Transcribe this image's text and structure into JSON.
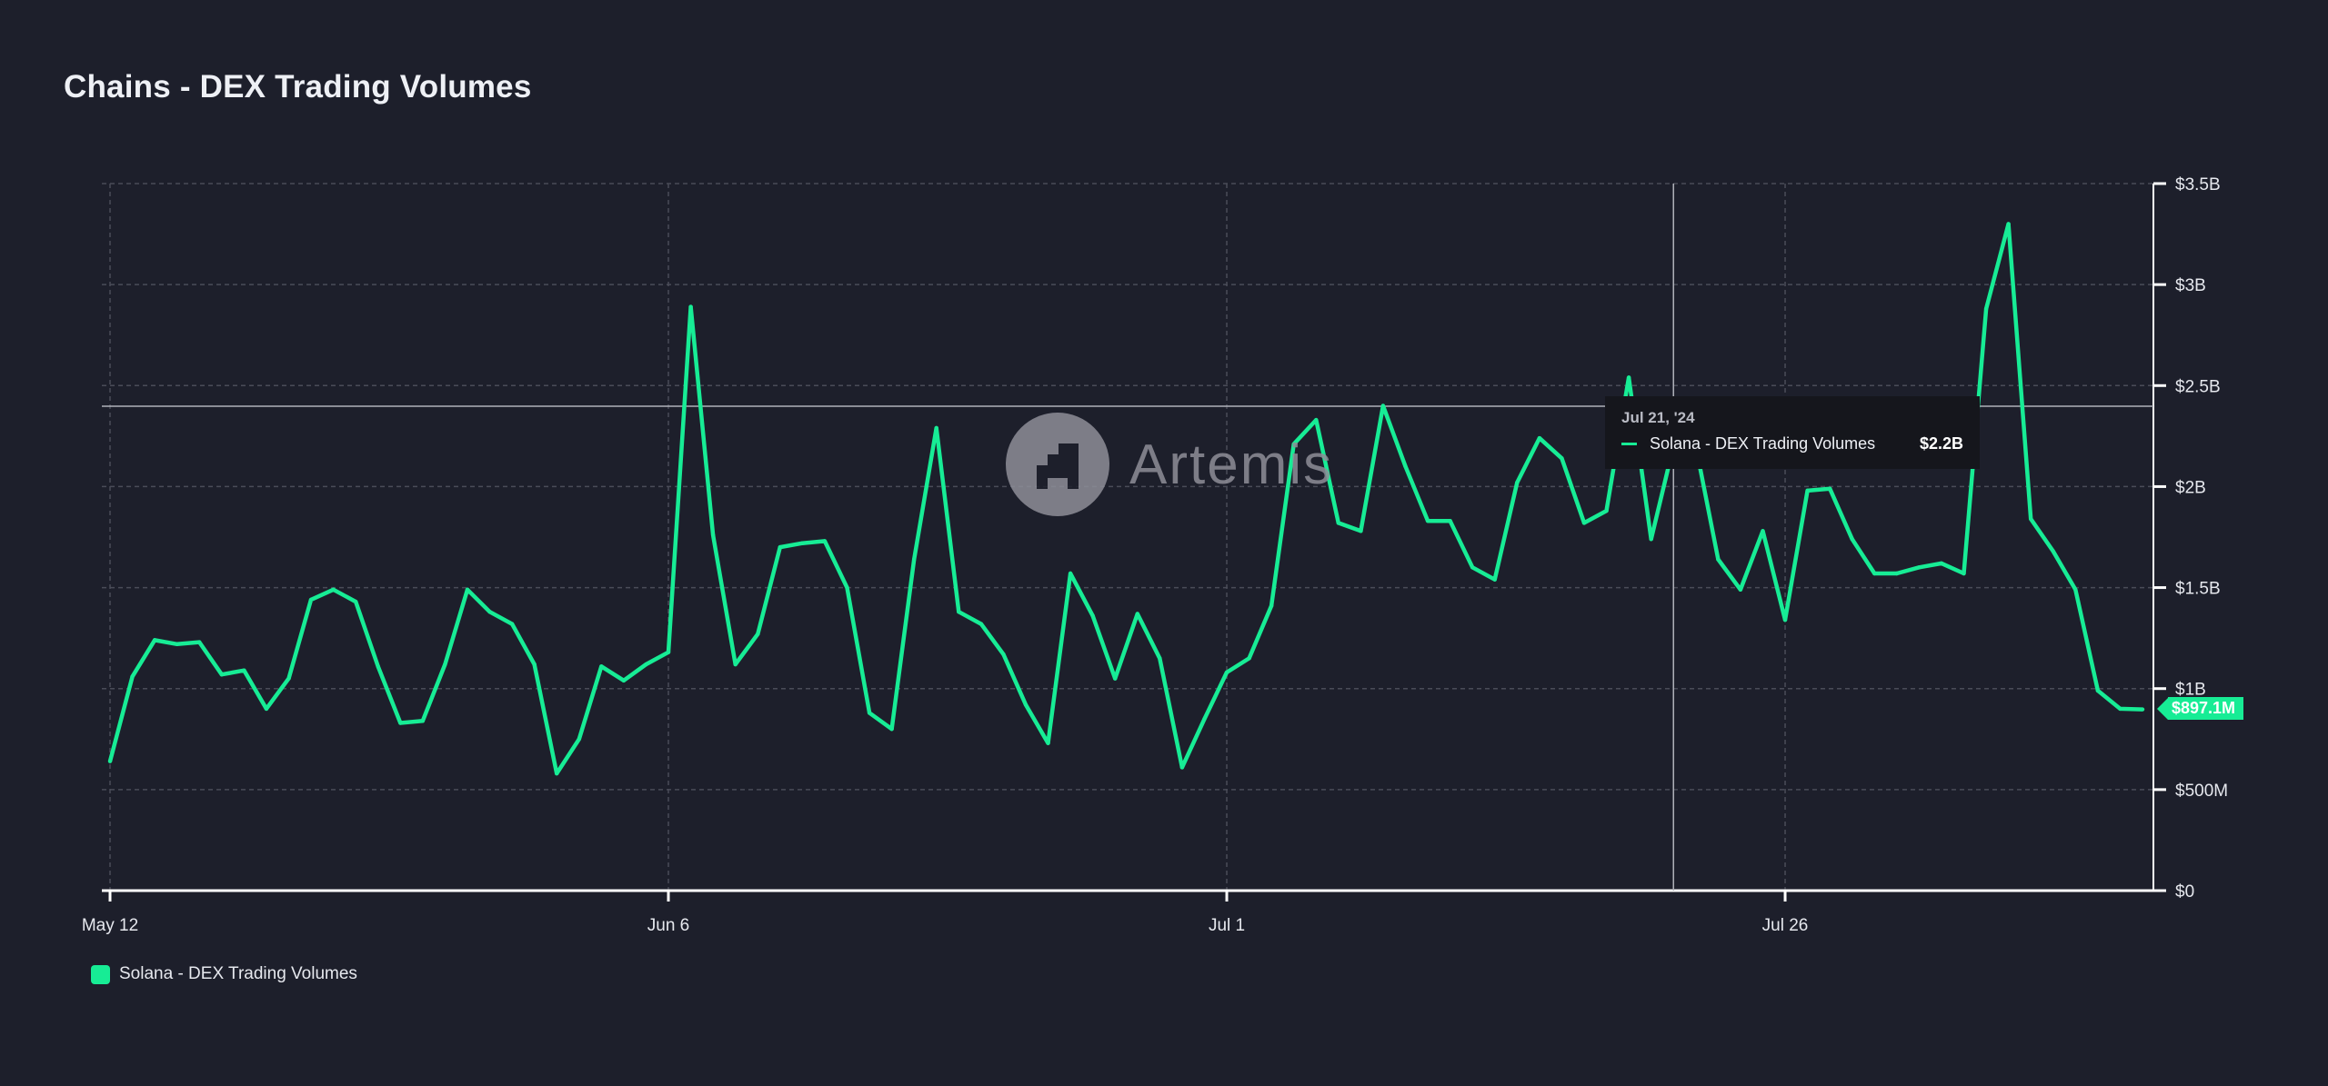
{
  "header": {
    "title": "Chains - DEX Trading Volumes"
  },
  "colors": {
    "background": "#1d1f2b",
    "series": "#17ec95",
    "grid": "#4a4c58",
    "axis": "#ffffff",
    "crosshair": "#b0b2ba"
  },
  "watermark": {
    "text": "Artemis"
  },
  "tooltip": {
    "date": "Jul 21, '24",
    "series": "Solana - DEX Trading Volumes",
    "value": "$2.2B"
  },
  "last_value_label": "$897.1M",
  "legend": {
    "items": [
      {
        "label": "Solana - DEX Trading Volumes",
        "color": "#17ec95"
      }
    ],
    "placement": "bottom-left"
  },
  "chart_data": {
    "type": "line",
    "title": "Chains - DEX Trading Volumes",
    "xlabel": "",
    "ylabel": "",
    "grid": true,
    "y_axis_side": "right",
    "x_tick_labels": [
      "May 12",
      "Jun 6",
      "Jul 1",
      "Jul 26"
    ],
    "y_tick_labels": [
      "$0",
      "$500M",
      "$1B",
      "$1.5B",
      "$2B",
      "$2.5B",
      "$3B",
      "$3.5B"
    ],
    "ylim": [
      0,
      3500000000
    ],
    "xlim": [
      "2024-05-12",
      "2024-08-11"
    ],
    "x": [
      "2024-05-12",
      "2024-05-13",
      "2024-05-14",
      "2024-05-15",
      "2024-05-16",
      "2024-05-17",
      "2024-05-18",
      "2024-05-19",
      "2024-05-20",
      "2024-05-21",
      "2024-05-22",
      "2024-05-23",
      "2024-05-24",
      "2024-05-25",
      "2024-05-26",
      "2024-05-27",
      "2024-05-28",
      "2024-05-29",
      "2024-05-30",
      "2024-05-31",
      "2024-06-01",
      "2024-06-02",
      "2024-06-03",
      "2024-06-04",
      "2024-06-05",
      "2024-06-06",
      "2024-06-07",
      "2024-06-08",
      "2024-06-09",
      "2024-06-10",
      "2024-06-11",
      "2024-06-12",
      "2024-06-13",
      "2024-06-14",
      "2024-06-15",
      "2024-06-16",
      "2024-06-17",
      "2024-06-18",
      "2024-06-19",
      "2024-06-20",
      "2024-06-21",
      "2024-06-22",
      "2024-06-23",
      "2024-06-24",
      "2024-06-25",
      "2024-06-26",
      "2024-06-27",
      "2024-06-28",
      "2024-06-29",
      "2024-06-30",
      "2024-07-01",
      "2024-07-02",
      "2024-07-03",
      "2024-07-04",
      "2024-07-05",
      "2024-07-06",
      "2024-07-07",
      "2024-07-08",
      "2024-07-09",
      "2024-07-10",
      "2024-07-11",
      "2024-07-12",
      "2024-07-13",
      "2024-07-14",
      "2024-07-15",
      "2024-07-16",
      "2024-07-17",
      "2024-07-18",
      "2024-07-19",
      "2024-07-20",
      "2024-07-21",
      "2024-07-22",
      "2024-07-23",
      "2024-07-24",
      "2024-07-25",
      "2024-07-26",
      "2024-07-27",
      "2024-07-28",
      "2024-07-29",
      "2024-07-30",
      "2024-07-31",
      "2024-08-01",
      "2024-08-02",
      "2024-08-03",
      "2024-08-04",
      "2024-08-05",
      "2024-08-06",
      "2024-08-07",
      "2024-08-08",
      "2024-08-09",
      "2024-08-10",
      "2024-08-11"
    ],
    "series": [
      {
        "name": "Solana - DEX Trading Volumes",
        "color": "#17ec95",
        "values": [
          640000000.0,
          1060000000.0,
          1240000000.0,
          1220000000.0,
          1230000000.0,
          1070000000.0,
          1090000000.0,
          900000000.0,
          1050000000.0,
          1440000000.0,
          1490000000.0,
          1430000000.0,
          1110000000.0,
          830000000.0,
          840000000.0,
          1120000000.0,
          1490000000.0,
          1380000000.0,
          1320000000.0,
          1120000000.0,
          580000000.0,
          750000000.0,
          1110000000.0,
          1040000000.0,
          1120000000.0,
          1180000000.0,
          2890000000.0,
          1760000000.0,
          1120000000.0,
          1270000000.0,
          1700000000.0,
          1720000000.0,
          1730000000.0,
          1500000000.0,
          880000000.0,
          800000000.0,
          1640000000.0,
          2290000000.0,
          1380000000.0,
          1320000000.0,
          1170000000.0,
          920000000.0,
          730000000.0,
          1570000000.0,
          1360000000.0,
          1050000000.0,
          1370000000.0,
          1150000000.0,
          610000000.0,
          850000000.0,
          1080000000.0,
          1150000000.0,
          1410000000.0,
          2210000000.0,
          2330000000.0,
          1820000000.0,
          1780000000.0,
          2400000000.0,
          2100000000.0,
          1830000000.0,
          1830000000.0,
          1600000000.0,
          1540000000.0,
          2020000000.0,
          2240000000.0,
          2140000000.0,
          1820000000.0,
          1880000000.0,
          2540000000.0,
          1740000000.0,
          2200000000.0,
          2200000000.0,
          1640000000.0,
          1490000000.0,
          1780000000.0,
          1340000000.0,
          1980000000.0,
          1990000000.0,
          1740000000.0,
          1570000000.0,
          1570000000.0,
          1600000000.0,
          1620000000.0,
          1570000000.0,
          2880000000.0,
          3300000000.0,
          1840000000.0,
          1680000000.0,
          1490000000.0,
          990000000.0,
          900000000.0,
          897100000.0
        ]
      }
    ]
  }
}
